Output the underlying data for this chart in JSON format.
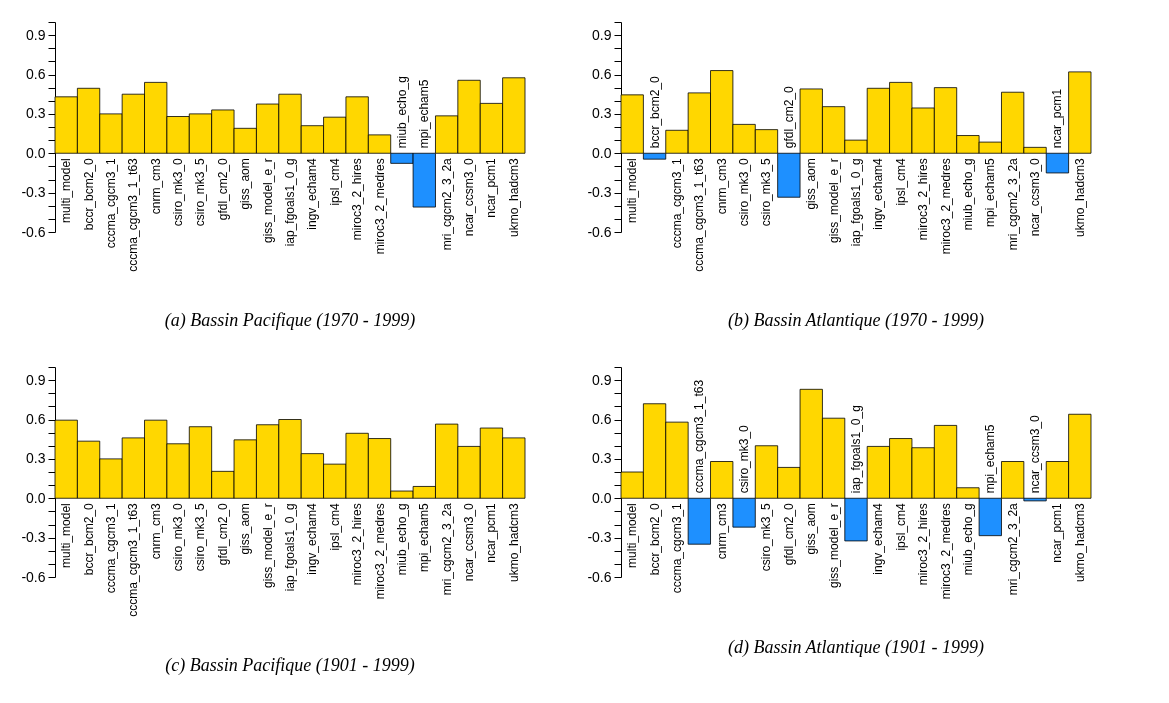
{
  "chart_data": [
    {
      "type": "bar",
      "title": "(a) Bassin Pacifique (1970 - 1999)",
      "categories": [
        "multi_model",
        "bccr_bcm2_0",
        "cccma_cgcm3_1",
        "cccma_cgcm3_1_t63",
        "cnrm_cm3",
        "csiro_mk3_0",
        "csiro_mk3_5",
        "gfdl_cm2_0",
        "giss_aom",
        "giss_model_e_r",
        "iap_fgoals1_0_g",
        "ingv_echam4",
        "ipsl_cm4",
        "miroc3_2_hires",
        "miroc3_2_medres",
        "miub_echo_g",
        "mpi_echam5",
        "mri_cgcm2_3_2a",
        "ncar_ccsm3_0",
        "ncar_pcm1",
        "ukmo_hadcm3"
      ],
      "values": [
        0.43,
        0.495,
        0.3,
        0.45,
        0.54,
        0.28,
        0.3,
        0.33,
        0.19,
        0.375,
        0.45,
        0.21,
        0.275,
        0.43,
        0.14,
        -0.077,
        -0.41,
        0.285,
        0.556,
        0.38,
        0.575
      ],
      "colors": [
        "#ffd700",
        "#ffd700",
        "#ffd700",
        "#ffd700",
        "#ffd700",
        "#ffd700",
        "#ffd700",
        "#ffd700",
        "#ffd700",
        "#ffd700",
        "#ffd700",
        "#ffd700",
        "#ffd700",
        "#ffd700",
        "#ffd700",
        "#1e90ff",
        "#1e90ff",
        "#ffd700",
        "#ffd700",
        "#ffd700",
        "#ffd700"
      ],
      "ylim": [
        -0.6,
        1.0
      ],
      "yticks": [
        -0.6,
        {
          "value": -0.5,
          "label": null
        },
        {
          "value": -0.4,
          "label": null
        },
        -0.3,
        {
          "value": -0.2,
          "label": null
        },
        {
          "value": -0.1,
          "label": null
        },
        {
          "value": 0,
          "label": "0.0"
        },
        {
          "value": 0.1,
          "label": null
        },
        {
          "value": 0.2,
          "label": null
        },
        0.3,
        {
          "value": 0.4,
          "label": null
        },
        {
          "value": 0.5,
          "label": null
        },
        0.6,
        {
          "value": 0.7,
          "label": null
        },
        {
          "value": 0.8,
          "label": null
        },
        0.9,
        {
          "value": 1.0,
          "label": null
        }
      ]
    },
    {
      "type": "bar",
      "title": "(b) Bassin Atlantique (1970 - 1999)",
      "categories": [
        "multi_model",
        "bccr_bcm2_0",
        "cccma_cgcm3_1",
        "cccma_cgcm3_1_t63",
        "cnrm_cm3",
        "csiro_mk3_0",
        "csiro_mk3_5",
        "gfdl_cm2_0",
        "giss_aom",
        "giss_model_e_r",
        "iap_fgoals1_0_g",
        "ingv_echam4",
        "ipsl_cm4",
        "miroc3_2_hires",
        "miroc3_2_medres",
        "miub_echo_g",
        "mpi_echam5",
        "mri_cgcm2_3_2a",
        "ncar_ccsm3_0",
        "ncar_pcm1",
        "ukmo_hadcm3"
      ],
      "values": [
        0.445,
        -0.045,
        0.175,
        0.46,
        0.63,
        0.22,
        0.18,
        -0.335,
        0.49,
        0.355,
        0.1,
        0.495,
        0.54,
        0.345,
        0.5,
        0.135,
        0.085,
        0.465,
        0.045,
        -0.15,
        0.62
      ],
      "colors": [
        "#ffd700",
        "#1e90ff",
        "#ffd700",
        "#ffd700",
        "#ffd700",
        "#ffd700",
        "#ffd700",
        "#1e90ff",
        "#ffd700",
        "#ffd700",
        "#ffd700",
        "#ffd700",
        "#ffd700",
        "#ffd700",
        "#ffd700",
        "#ffd700",
        "#ffd700",
        "#ffd700",
        "#ffd700",
        "#1e90ff",
        "#ffd700"
      ],
      "ylim": [
        -0.6,
        1.0
      ],
      "yticks": [
        -0.6,
        {
          "value": -0.5,
          "label": null
        },
        {
          "value": -0.4,
          "label": null
        },
        -0.3,
        {
          "value": -0.2,
          "label": null
        },
        {
          "value": -0.1,
          "label": null
        },
        {
          "value": 0,
          "label": "0.0"
        },
        {
          "value": 0.1,
          "label": null
        },
        {
          "value": 0.2,
          "label": null
        },
        0.3,
        {
          "value": 0.4,
          "label": null
        },
        {
          "value": 0.5,
          "label": null
        },
        0.6,
        {
          "value": 0.7,
          "label": null
        },
        {
          "value": 0.8,
          "label": null
        },
        0.9,
        {
          "value": 1.0,
          "label": null
        }
      ]
    },
    {
      "type": "bar",
      "title": "(c) Bassin Pacifique (1901 - 1999)",
      "categories": [
        "multi_model",
        "bccr_bcm2_0",
        "cccma_cgcm3_1",
        "cccma_cgcm3_1_t63",
        "cnrm_cm3",
        "csiro_mk3_0",
        "csiro_mk3_5",
        "gfdl_cm2_0",
        "giss_aom",
        "giss_model_e_r",
        "iap_fgoals1_0_g",
        "ingv_echam4",
        "ipsl_cm4",
        "miroc3_2_hires",
        "miroc3_2_medres",
        "miub_echo_g",
        "mpi_echam5",
        "mri_cgcm2_3_2a",
        "ncar_ccsm3_0",
        "ncar_pcm1",
        "ukmo_hadcm3"
      ],
      "values": [
        0.595,
        0.435,
        0.3,
        0.46,
        0.595,
        0.415,
        0.545,
        0.205,
        0.445,
        0.56,
        0.6,
        0.34,
        0.26,
        0.495,
        0.455,
        0.055,
        0.09,
        0.565,
        0.395,
        0.535,
        0.46
      ],
      "colors": [
        "#ffd700",
        "#ffd700",
        "#ffd700",
        "#ffd700",
        "#ffd700",
        "#ffd700",
        "#ffd700",
        "#ffd700",
        "#ffd700",
        "#ffd700",
        "#ffd700",
        "#ffd700",
        "#ffd700",
        "#ffd700",
        "#ffd700",
        "#ffd700",
        "#ffd700",
        "#ffd700",
        "#ffd700",
        "#ffd700",
        "#ffd700"
      ],
      "ylim": [
        -0.6,
        1.0
      ],
      "yticks": [
        -0.6,
        {
          "value": -0.5,
          "label": null
        },
        {
          "value": -0.4,
          "label": null
        },
        -0.3,
        {
          "value": -0.2,
          "label": null
        },
        {
          "value": -0.1,
          "label": null
        },
        {
          "value": 0,
          "label": "0.0"
        },
        {
          "value": 0.1,
          "label": null
        },
        {
          "value": 0.2,
          "label": null
        },
        0.3,
        {
          "value": 0.4,
          "label": null
        },
        {
          "value": 0.5,
          "label": null
        },
        0.6,
        {
          "value": 0.7,
          "label": null
        },
        {
          "value": 0.8,
          "label": null
        },
        0.9,
        {
          "value": 1.0,
          "label": null
        }
      ]
    },
    {
      "type": "bar",
      "title": "(d) Bassin Atlantique (1901 - 1999)",
      "categories": [
        "multi_model",
        "bccr_bcm2_0",
        "cccma_cgcm3_1",
        "cccma_cgcm3_1_t63",
        "cnrm_cm3",
        "csiro_mk3_0",
        "csiro_mk3_5",
        "gfdl_cm2_0",
        "giss_aom",
        "giss_model_e_r",
        "iap_fgoals1_0_g",
        "ingv_echam4",
        "ipsl_cm4",
        "miroc3_2_hires",
        "miroc3_2_medres",
        "miub_echo_g",
        "mpi_echam5",
        "mri_cgcm2_3_2a",
        "ncar_ccsm3_0",
        "ncar_pcm1",
        "ukmo_hadcm3"
      ],
      "values": [
        0.2,
        0.72,
        0.58,
        -0.35,
        0.28,
        -0.22,
        0.4,
        0.235,
        0.83,
        0.61,
        -0.325,
        0.395,
        0.455,
        0.385,
        0.555,
        0.08,
        -0.285,
        0.28,
        -0.02,
        0.28,
        0.64
      ],
      "colors": [
        "#ffd700",
        "#ffd700",
        "#ffd700",
        "#1e90ff",
        "#ffd700",
        "#1e90ff",
        "#ffd700",
        "#ffd700",
        "#ffd700",
        "#ffd700",
        "#1e90ff",
        "#ffd700",
        "#ffd700",
        "#ffd700",
        "#ffd700",
        "#ffd700",
        "#1e90ff",
        "#ffd700",
        "#1e90ff",
        "#ffd700",
        "#ffd700"
      ],
      "ylim": [
        -0.6,
        1.0
      ],
      "yticks": [
        -0.6,
        {
          "value": -0.5,
          "label": null
        },
        {
          "value": -0.4,
          "label": null
        },
        -0.3,
        {
          "value": -0.2,
          "label": null
        },
        {
          "value": -0.1,
          "label": null
        },
        {
          "value": 0,
          "label": "0.0"
        },
        {
          "value": 0.1,
          "label": null
        },
        {
          "value": 0.2,
          "label": null
        },
        0.3,
        {
          "value": 0.4,
          "label": null
        },
        {
          "value": 0.5,
          "label": null
        },
        0.6,
        {
          "value": 0.7,
          "label": null
        },
        {
          "value": 0.8,
          "label": null
        },
        0.9,
        {
          "value": 1.0,
          "label": null
        }
      ]
    }
  ]
}
